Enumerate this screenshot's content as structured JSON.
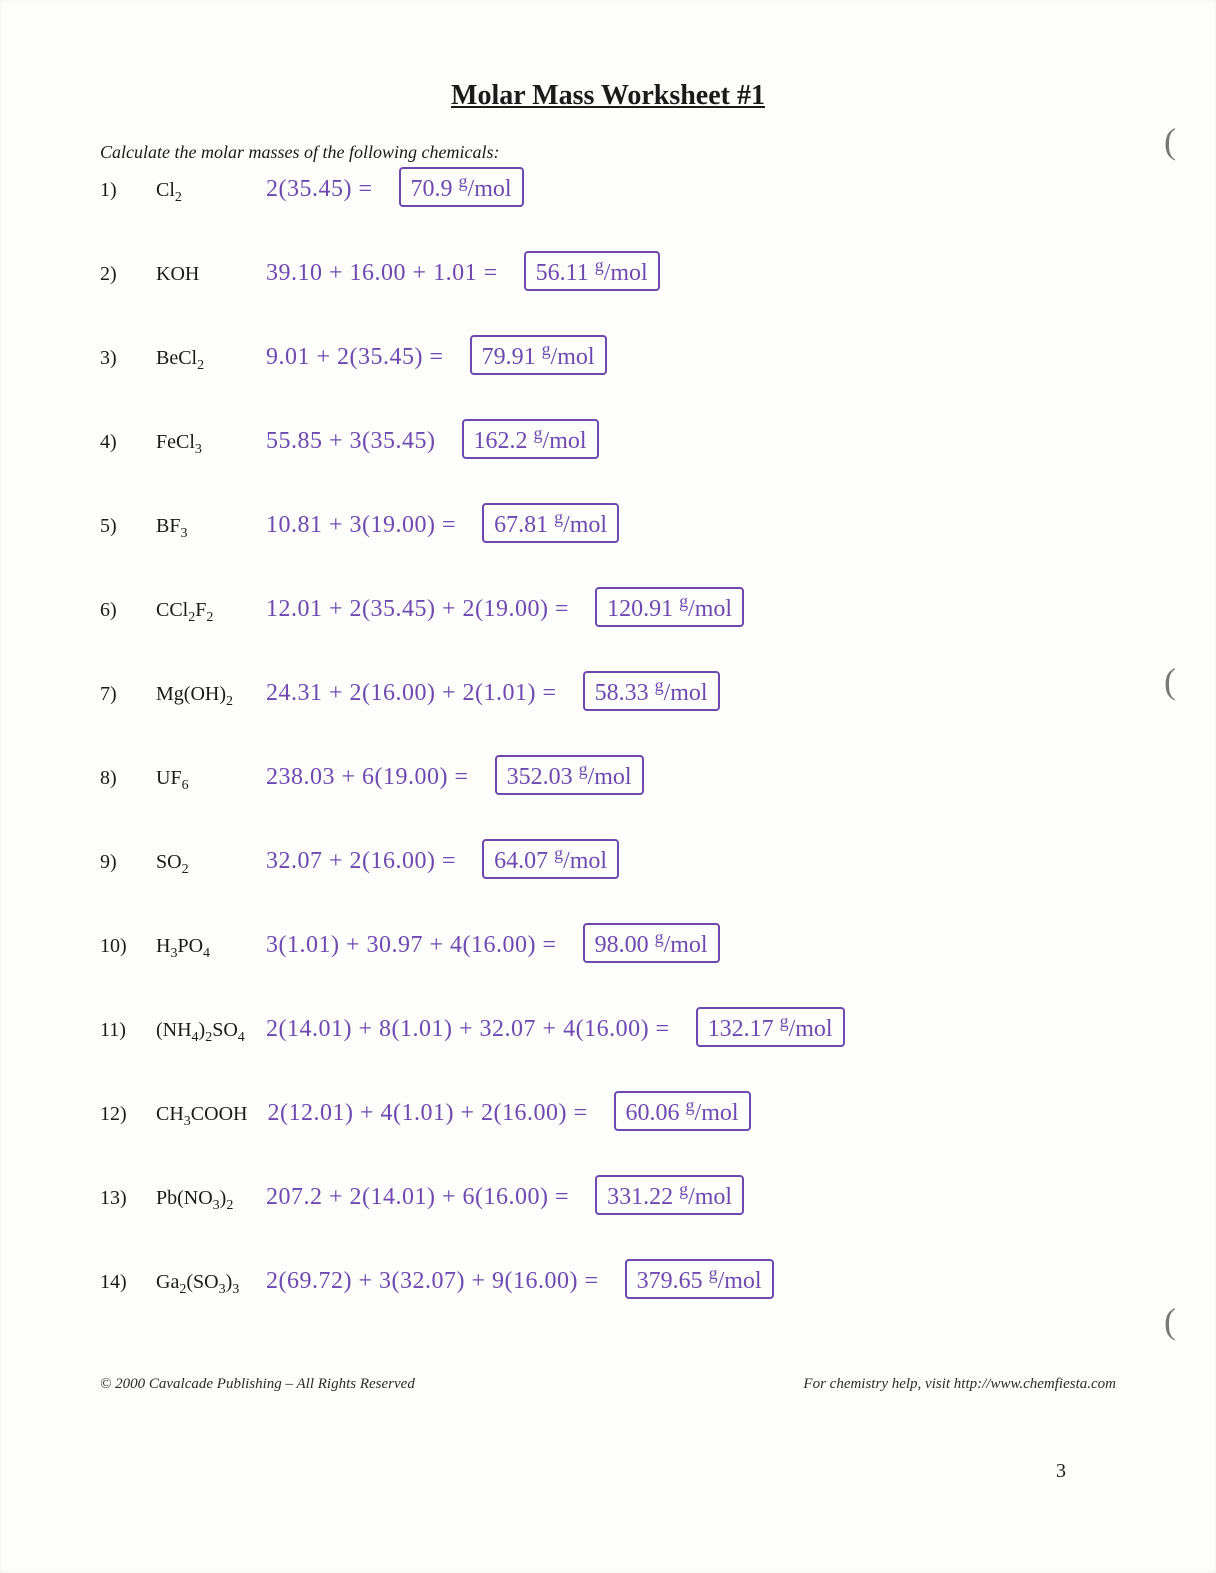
{
  "title": "Molar Mass Worksheet #1",
  "instructions": "Calculate the molar masses of the following chemicals:",
  "footer_left": "© 2000 Cavalcade Publishing – All Rights Reserved",
  "footer_right": "For chemistry help, visit http://www.chemfiesta.com",
  "page_number": "3",
  "unit": "g/mol",
  "colors": {
    "handwriting": "#6f49b0",
    "printed_text": "#1a1a1a",
    "paper": "#fdfdfc",
    "box_border": "#6f49b0"
  },
  "problems": [
    {
      "n": "1)",
      "formula_html": "Cl<sub>2</sub>",
      "work": "2(35.45) =",
      "answer": "70.9"
    },
    {
      "n": "2)",
      "formula_html": "KOH",
      "work": "39.10 + 16.00 + 1.01 =",
      "answer": "56.11"
    },
    {
      "n": "3)",
      "formula_html": "BeCl<sub>2</sub>",
      "work": "9.01 + 2(35.45) =",
      "answer": "79.91"
    },
    {
      "n": "4)",
      "formula_html": "FeCl<sub>3</sub>",
      "work": "55.85 + 3(35.45)",
      "answer": "162.2"
    },
    {
      "n": "5)",
      "formula_html": "BF<sub>3</sub>",
      "work": "10.81 + 3(19.00) =",
      "answer": "67.81"
    },
    {
      "n": "6)",
      "formula_html": "CCl<sub>2</sub>F<sub>2</sub>",
      "work": "12.01 + 2(35.45) + 2(19.00) =",
      "answer": "120.91"
    },
    {
      "n": "7)",
      "formula_html": "Mg(OH)<sub>2</sub>",
      "work": "24.31 + 2(16.00) + 2(1.01) =",
      "answer": "58.33"
    },
    {
      "n": "8)",
      "formula_html": "UF<sub>6</sub>",
      "work": "238.03 + 6(19.00) =",
      "answer": "352.03"
    },
    {
      "n": "9)",
      "formula_html": "SO<sub>2</sub>",
      "work": "32.07 + 2(16.00) =",
      "answer": "64.07"
    },
    {
      "n": "10)",
      "formula_html": "H<sub>3</sub>PO<sub>4</sub>",
      "work": "3(1.01) + 30.97 + 4(16.00) =",
      "answer": "98.00"
    },
    {
      "n": "11)",
      "formula_html": "(NH<sub>4</sub>)<sub>2</sub>SO<sub>4</sub>",
      "work": "2(14.01) + 8(1.01) + 32.07 + 4(16.00) =",
      "answer": "132.17"
    },
    {
      "n": "12)",
      "formula_html": "CH<sub>3</sub>COOH",
      "work": "2(12.01) + 4(1.01) + 2(16.00) =",
      "answer": "60.06"
    },
    {
      "n": "13)",
      "formula_html": "Pb(NO<sub>3</sub>)<sub>2</sub>",
      "work": "207.2 + 2(14.01) + 6(16.00) =",
      "answer": "331.22"
    },
    {
      "n": "14)",
      "formula_html": "Ga<sub>2</sub>(SO<sub>3</sub>)<sub>3</sub>",
      "work": "2(69.72) + 3(32.07) + 9(16.00) =",
      "answer": "379.65"
    }
  ]
}
